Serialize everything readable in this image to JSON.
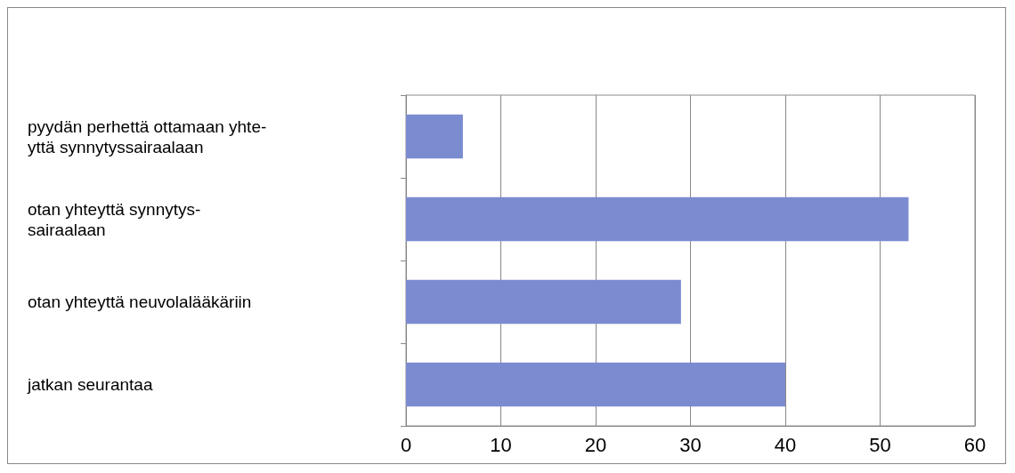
{
  "chart_data": {
    "type": "bar",
    "orientation": "horizontal",
    "categories": [
      "pyydän perhettä ottamaan yhte-\nyttä synnytyssairaalaan",
      "otan yhteyttä synnytys-\nsairaalaan",
      "otan yhteyttä neuvolalääkäriin",
      "jatkan seurantaa"
    ],
    "values": [
      6,
      53,
      29,
      40
    ],
    "color": "#7b8bd0",
    "xlim": [
      0,
      60
    ],
    "xticks": [
      0,
      10,
      20,
      30,
      40,
      50,
      60
    ],
    "grid": "x"
  }
}
